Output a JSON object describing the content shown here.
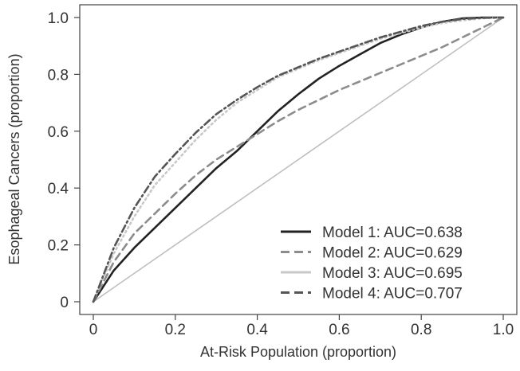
{
  "chart_data": {
    "type": "line",
    "title": "",
    "xlabel": "At-Risk Population (proportion)",
    "ylabel": "Esophageal Cancers (proportion)",
    "xlim": [
      0,
      1
    ],
    "ylim": [
      0,
      1
    ],
    "x_ticks": [
      0,
      0.2,
      0.4,
      0.6,
      0.8,
      1.0
    ],
    "x_tick_labels": [
      "0",
      "0.2",
      "0.4",
      "0.6",
      "0.8",
      "1.0"
    ],
    "y_ticks": [
      0,
      0.2,
      0.4,
      0.6,
      0.8,
      1.0
    ],
    "y_tick_labels": [
      "0",
      "0.2",
      "0.4",
      "0.6",
      "0.8",
      "1.0"
    ],
    "grid": false,
    "legend_position": "bottom-right",
    "legend": [
      "Model 1: AUC=0.638",
      "Model 2: AUC=0.629",
      "Model 3: AUC=0.695",
      "Model 4: AUC=0.707"
    ],
    "reference_line": {
      "x": [
        0,
        1
      ],
      "y": [
        0,
        1
      ],
      "color": "#bfbfbf"
    },
    "series": [
      {
        "name": "Model 1: AUC=0.638",
        "color": "#222222",
        "dash": "solid",
        "x": [
          0,
          0.05,
          0.1,
          0.15,
          0.2,
          0.25,
          0.3,
          0.35,
          0.4,
          0.45,
          0.5,
          0.55,
          0.6,
          0.65,
          0.7,
          0.75,
          0.8,
          0.85,
          0.9,
          0.95,
          1.0
        ],
        "y": [
          0,
          0.11,
          0.19,
          0.26,
          0.33,
          0.4,
          0.47,
          0.53,
          0.6,
          0.67,
          0.73,
          0.785,
          0.83,
          0.87,
          0.91,
          0.94,
          0.965,
          0.985,
          0.997,
          1.0,
          1.0
        ]
      },
      {
        "name": "Model 2: AUC=0.629",
        "color": "#8c8c8c",
        "dash": "dashed",
        "x": [
          0,
          0.05,
          0.1,
          0.15,
          0.2,
          0.25,
          0.3,
          0.35,
          0.4,
          0.45,
          0.5,
          0.55,
          0.6,
          0.65,
          0.7,
          0.75,
          0.8,
          0.85,
          0.9,
          0.95,
          1.0
        ],
        "y": [
          0,
          0.14,
          0.24,
          0.31,
          0.38,
          0.445,
          0.5,
          0.545,
          0.59,
          0.635,
          0.675,
          0.71,
          0.745,
          0.775,
          0.805,
          0.835,
          0.865,
          0.895,
          0.93,
          0.965,
          1.0
        ]
      },
      {
        "name": "Model 3: AUC=0.695",
        "color": "#c8c8c8",
        "dash": "dotted",
        "x": [
          0,
          0.05,
          0.1,
          0.15,
          0.2,
          0.25,
          0.3,
          0.35,
          0.4,
          0.45,
          0.5,
          0.55,
          0.6,
          0.65,
          0.7,
          0.75,
          0.8,
          0.85,
          0.9,
          0.95,
          1.0
        ],
        "y": [
          0,
          0.17,
          0.3,
          0.41,
          0.49,
          0.57,
          0.64,
          0.7,
          0.745,
          0.79,
          0.82,
          0.85,
          0.875,
          0.9,
          0.925,
          0.945,
          0.965,
          0.98,
          0.99,
          0.997,
          1.0
        ]
      },
      {
        "name": "Model 4: AUC=0.707",
        "color": "#555555",
        "dash": "dashdot",
        "x": [
          0,
          0.05,
          0.1,
          0.15,
          0.2,
          0.25,
          0.3,
          0.35,
          0.4,
          0.45,
          0.5,
          0.55,
          0.6,
          0.65,
          0.7,
          0.75,
          0.8,
          0.85,
          0.9,
          0.95,
          1.0
        ],
        "y": [
          0,
          0.19,
          0.33,
          0.44,
          0.52,
          0.595,
          0.66,
          0.71,
          0.755,
          0.795,
          0.825,
          0.855,
          0.88,
          0.905,
          0.93,
          0.95,
          0.97,
          0.985,
          0.995,
          0.999,
          1.0
        ]
      }
    ]
  }
}
